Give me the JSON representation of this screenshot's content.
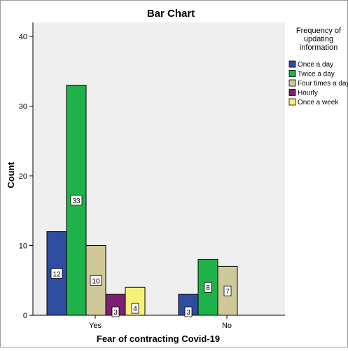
{
  "chart_data": {
    "type": "bar",
    "title": "Bar Chart",
    "xlabel": "Fear of contracting Covid-19",
    "ylabel": "Count",
    "categories": [
      "Yes",
      "No"
    ],
    "ylim": [
      0,
      40
    ],
    "yticks": [
      0,
      10,
      20,
      30,
      40
    ],
    "legend": {
      "title_lines": [
        "Frequency of",
        "updating",
        "information"
      ],
      "placement": "right"
    },
    "series": [
      {
        "name": "Once a day",
        "color": "#2f4da0",
        "values": [
          12,
          3
        ]
      },
      {
        "name": "Twice a day",
        "color": "#20b24a",
        "values": [
          33,
          8
        ]
      },
      {
        "name": "Four times a day",
        "color": "#cfc99a",
        "values": [
          10,
          7
        ]
      },
      {
        "name": "Hourly",
        "color": "#7d1f6e",
        "values": [
          3,
          null
        ]
      },
      {
        "name": "Once a week",
        "color": "#f7f17a",
        "values": [
          4,
          null
        ]
      }
    ]
  }
}
